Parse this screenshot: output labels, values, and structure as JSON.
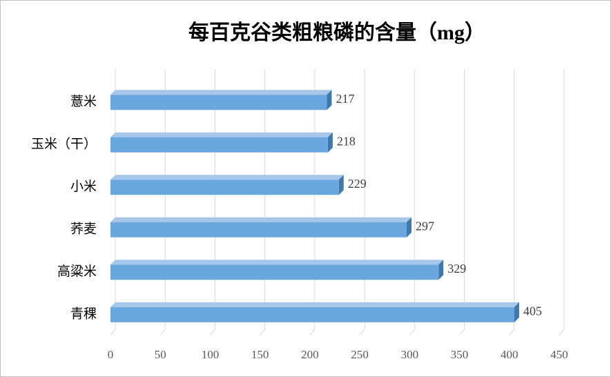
{
  "chart_data": {
    "type": "bar",
    "orientation": "horizontal",
    "title": "每百克谷类粗粮磷的含量（mg）",
    "categories": [
      "薏米",
      "玉米（干）",
      "小米",
      "荞麦",
      "高粱米",
      "青稞"
    ],
    "values": [
      217,
      218,
      229,
      297,
      329,
      405
    ],
    "color": "#6aa7de",
    "xlim": [
      0,
      450
    ],
    "xticks": [
      0,
      50,
      100,
      150,
      200,
      250,
      300,
      350,
      400,
      450
    ],
    "grid": true
  }
}
